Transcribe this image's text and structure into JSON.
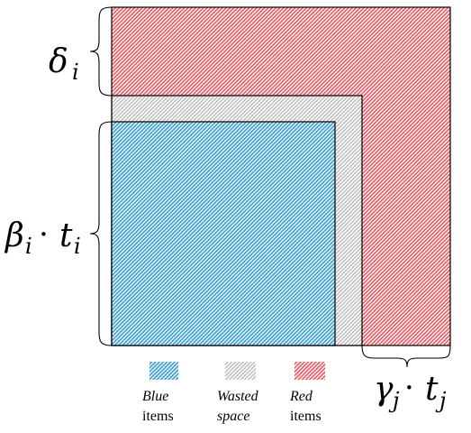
{
  "labels": {
    "delta": {
      "base": "δ",
      "sub": "i"
    },
    "beta_t": {
      "base1": "β",
      "sub1": "i",
      "dot": "·",
      "base2": "t",
      "sub2": "i"
    },
    "gamma_t": {
      "base1": "γ",
      "sub1": "j",
      "dot": "·",
      "base2": "t",
      "sub2": "j"
    }
  },
  "legend": {
    "blue": {
      "line1": "Blue",
      "line2": "items"
    },
    "wasted": {
      "line1": "Wasted",
      "line2": "space"
    },
    "red": {
      "line1": "Red",
      "line2": "items"
    }
  },
  "colors": {
    "red": "#e8565f",
    "blue": "#3b9fd1",
    "wasted": "#b4b4b4",
    "stroke": "#000000"
  }
}
